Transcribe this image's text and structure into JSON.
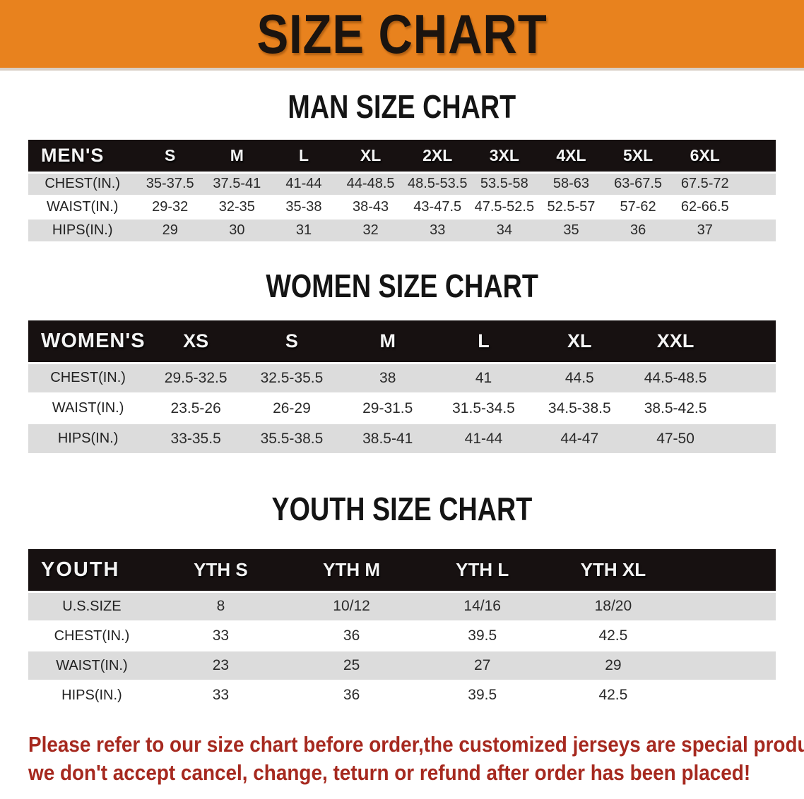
{
  "banner": {
    "title": "SIZE CHART"
  },
  "tables": [
    {
      "id": "mens",
      "title": "MAN SIZE CHART",
      "header": [
        "MEN'S",
        "S",
        "M",
        "L",
        "XL",
        "2XL",
        "3XL",
        "4XL",
        "5XL",
        "6XL"
      ],
      "rows": [
        [
          "CHEST(IN.)",
          "35-37.5",
          "37.5-41",
          "41-44",
          "44-48.5",
          "48.5-53.5",
          "53.5-58",
          "58-63",
          "63-67.5",
          "67.5-72"
        ],
        [
          "WAIST(IN.)",
          "29-32",
          "32-35",
          "35-38",
          "38-43",
          "43-47.5",
          "47.5-52.5",
          "52.5-57",
          "57-62",
          "62-66.5"
        ],
        [
          "HIPS(IN.)",
          "29",
          "30",
          "31",
          "32",
          "33",
          "34",
          "35",
          "36",
          "37"
        ]
      ]
    },
    {
      "id": "womens",
      "title": "WOMEN SIZE CHART",
      "header": [
        "WOMEN'S",
        "XS",
        "S",
        "M",
        "L",
        "XL",
        "XXL"
      ],
      "rows": [
        [
          "CHEST(IN.)",
          "29.5-32.5",
          "32.5-35.5",
          "38",
          "41",
          "44.5",
          "44.5-48.5"
        ],
        [
          "WAIST(IN.)",
          "23.5-26",
          "26-29",
          "29-31.5",
          "31.5-34.5",
          "34.5-38.5",
          "38.5-42.5"
        ],
        [
          "HIPS(IN.)",
          "33-35.5",
          "35.5-38.5",
          "38.5-41",
          "41-44",
          "44-47",
          "47-50"
        ]
      ]
    },
    {
      "id": "youth",
      "title": "YOUTH SIZE CHART",
      "header": [
        "YOUTH",
        "YTH S",
        "YTH M",
        "YTH L",
        "YTH XL"
      ],
      "rows": [
        [
          "U.S.SIZE",
          "8",
          "10/12",
          "14/16",
          "18/20"
        ],
        [
          "CHEST(IN.)",
          "33",
          "36",
          "39.5",
          "42.5"
        ],
        [
          "WAIST(IN.)",
          "23",
          "25",
          "27",
          "29"
        ],
        [
          "HIPS(IN.)",
          "33",
          "36",
          "39.5",
          "42.5"
        ]
      ]
    }
  ],
  "disclaimer": {
    "line1": "Please refer to our size chart before order,the customized jerseys are special products,",
    "line2": "we don't accept cancel, change, teturn or refund after order has been placed!"
  },
  "colors": {
    "banner_bg": "#E8821E",
    "table_header_bg": "#171111",
    "row_stripe": "#DCDCDC",
    "disclaimer_text": "#A6291F"
  }
}
